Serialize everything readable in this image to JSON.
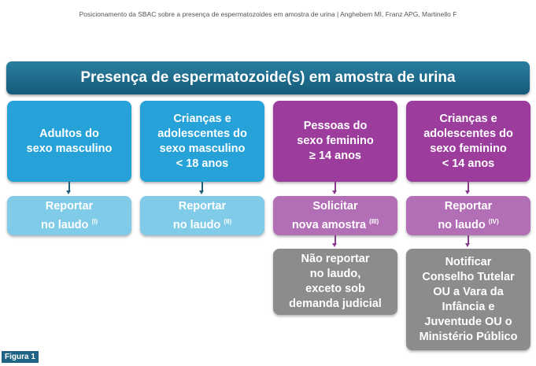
{
  "caption": "Posicionamento da SBAC sobre a presença de espermatozoides em amostra de urina | Anghebem MI, Franz APG, Martinello F",
  "title": "Presença de espermatozoide(s) em amostra de urina",
  "groups": [
    {
      "label": "Adultos do\nsexo masculino",
      "action": "Reportar\nno laudo",
      "note": "(I)"
    },
    {
      "label": "Crianças e\nadolescentes do\nsexo masculino\n< 18 anos",
      "action": "Reportar\nno laudo",
      "note": "(II)"
    },
    {
      "label": "Pessoas do\nsexo feminino\n≥ 14 anos",
      "action": "Solicitar\nnova amostra",
      "note": "(III)",
      "followup": "Não reportar\nno laudo,\nexceto sob\ndemanda judicial"
    },
    {
      "label": "Crianças e\nadolescentes do\nsexo feminino\n< 14 anos",
      "action": "Reportar\nno laudo",
      "note": "(IV)",
      "followup": "Notificar\nConselho Tutelar\nOU a Vara da\nInfância e\nJuventude OU o\nMinistério Público"
    }
  ],
  "figure_label": "Figura 1",
  "colors": {
    "header": "#1f6f8f",
    "male_primary": "#27a2d9",
    "male_secondary": "#7fcbe8",
    "female_primary": "#9c3d9e",
    "female_secondary": "#b36fb5",
    "followup": "#8c8c8c"
  }
}
